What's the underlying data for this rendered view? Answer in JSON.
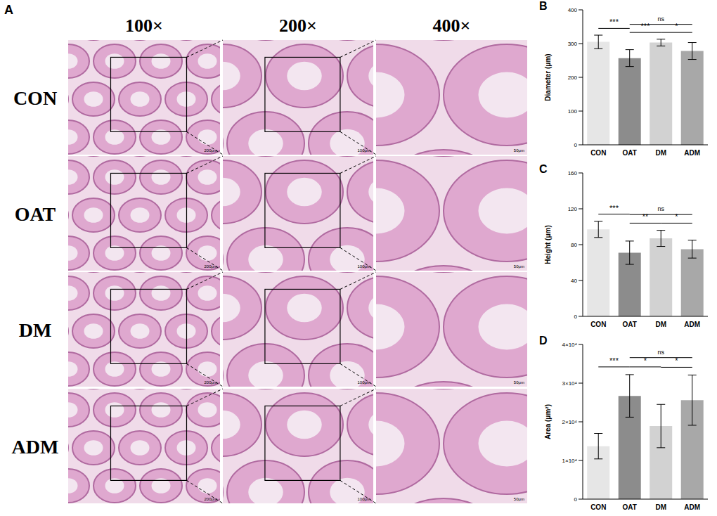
{
  "panel_a": {
    "label": "A",
    "magnifications": [
      "100×",
      "200×",
      "400×"
    ],
    "groups": [
      "CON",
      "OAT",
      "DM",
      "ADM"
    ],
    "scale_bars": [
      "200μm",
      "100μm",
      "50μm"
    ]
  },
  "chart_data": [
    {
      "panel": "B",
      "type": "bar",
      "y_label": "Diameter (μm)",
      "categories": [
        "CON",
        "OAT",
        "DM",
        "ADM"
      ],
      "values": [
        305,
        257,
        303,
        278
      ],
      "errors": [
        20,
        25,
        10,
        25
      ],
      "colors": [
        "#e6e6e6",
        "#8c8c8c",
        "#d2d2d2",
        "#a8a8a8"
      ],
      "ylim": [
        0,
        400
      ],
      "yticks": [
        0,
        100,
        200,
        300,
        400
      ],
      "significance": [
        {
          "from": "CON",
          "to": "OAT",
          "label": "***"
        },
        {
          "from": "OAT",
          "to": "DM",
          "label": "***"
        },
        {
          "from": "DM",
          "to": "ADM",
          "label": "*"
        },
        {
          "from": "OAT",
          "to": "ADM",
          "label": "ns"
        }
      ]
    },
    {
      "panel": "C",
      "type": "bar",
      "y_label": "Height (μm)",
      "categories": [
        "CON",
        "OAT",
        "DM",
        "ADM"
      ],
      "values": [
        97,
        71,
        87,
        75
      ],
      "errors": [
        9,
        13,
        9,
        10
      ],
      "colors": [
        "#e6e6e6",
        "#8c8c8c",
        "#d2d2d2",
        "#a8a8a8"
      ],
      "ylim": [
        0,
        160
      ],
      "yticks": [
        0,
        40,
        80,
        120,
        160
      ],
      "significance": [
        {
          "from": "CON",
          "to": "OAT",
          "label": "***"
        },
        {
          "from": "OAT",
          "to": "DM",
          "label": "**"
        },
        {
          "from": "DM",
          "to": "ADM",
          "label": "*"
        },
        {
          "from": "OAT",
          "to": "ADM",
          "label": "ns"
        }
      ]
    },
    {
      "panel": "D",
      "type": "bar",
      "y_label": "Area (μm²)",
      "categories": [
        "CON",
        "OAT",
        "DM",
        "ADM"
      ],
      "values": [
        13700,
        26700,
        18900,
        25600
      ],
      "errors": [
        3300,
        5500,
        5600,
        6500
      ],
      "colors": [
        "#e6e6e6",
        "#8c8c8c",
        "#d2d2d2",
        "#a8a8a8"
      ],
      "ylim": [
        0,
        40000
      ],
      "yticks": [
        0,
        {
          "value": 10000,
          "label": "1×10⁴"
        },
        {
          "value": 20000,
          "label": "2×10⁴"
        },
        {
          "value": 30000,
          "label": "3×10⁴"
        },
        {
          "value": 40000,
          "label": "4×10⁴"
        }
      ],
      "significance": [
        {
          "from": "CON",
          "to": "OAT",
          "label": "***"
        },
        {
          "from": "OAT",
          "to": "DM",
          "label": "*"
        },
        {
          "from": "DM",
          "to": "ADM",
          "label": "*"
        },
        {
          "from": "OAT",
          "to": "ADM",
          "label": "ns"
        }
      ]
    }
  ]
}
